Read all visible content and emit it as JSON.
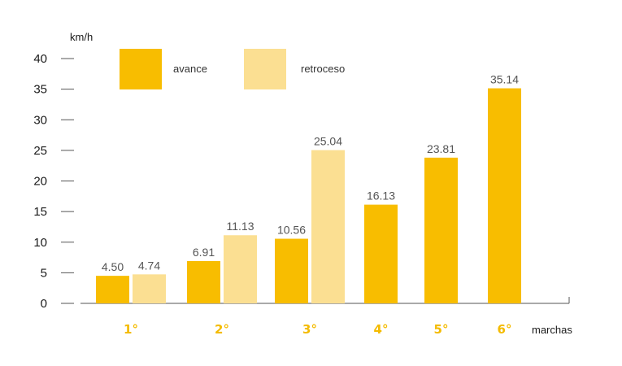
{
  "chart_data": {
    "type": "bar",
    "ylabel": "km/h",
    "xlabel": "marchas",
    "ylim": [
      0,
      40
    ],
    "yticks": [
      0,
      5,
      10,
      15,
      20,
      25,
      30,
      35,
      40
    ],
    "categories": [
      "1°",
      "2°",
      "3°",
      "4°",
      "5°",
      "6°"
    ],
    "series": [
      {
        "name": "avance",
        "color": "#f8bd00",
        "values": [
          4.5,
          6.91,
          10.56,
          16.13,
          23.81,
          35.14
        ]
      },
      {
        "name": "retroceso",
        "color": "#fbdf92",
        "values": [
          4.74,
          11.13,
          25.04,
          null,
          null,
          null
        ]
      }
    ],
    "legend_position": "top-left",
    "grid": false
  }
}
